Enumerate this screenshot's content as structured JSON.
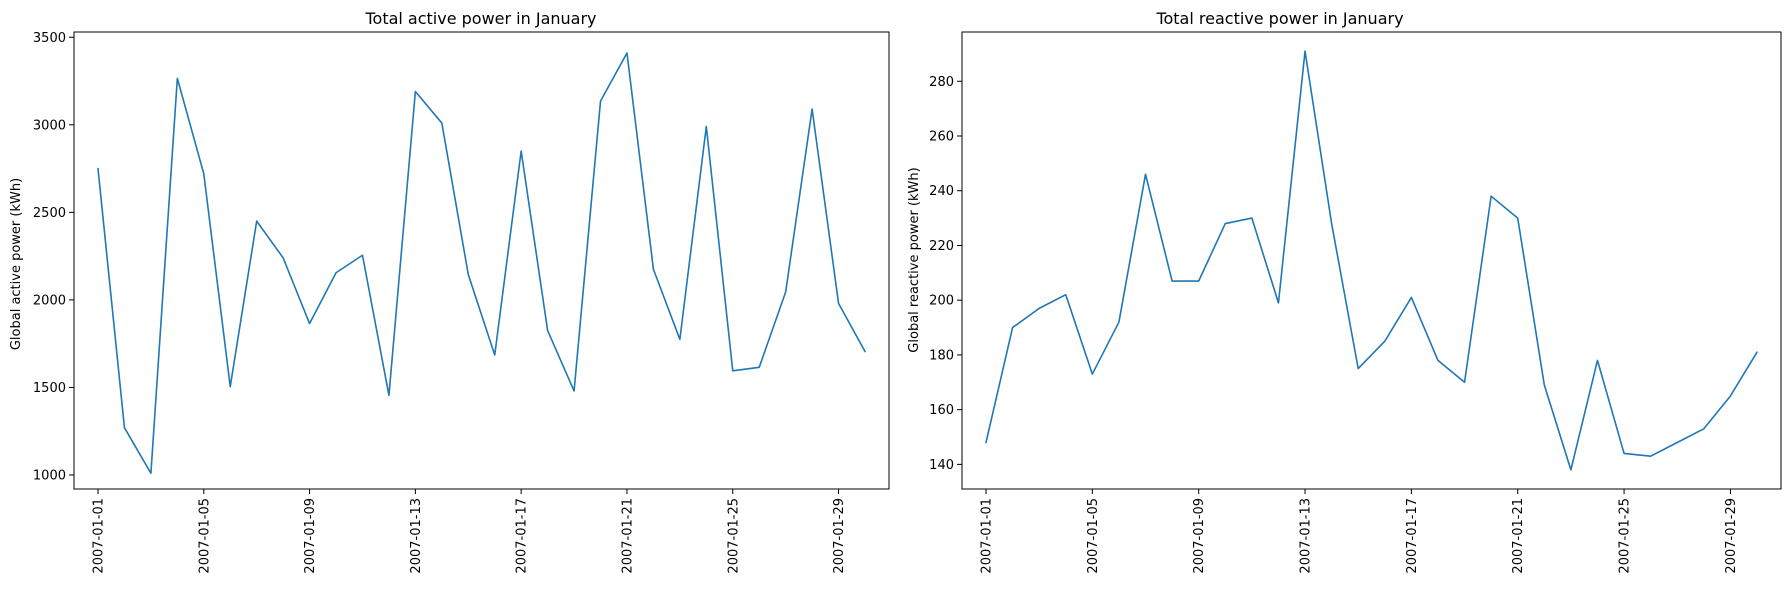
{
  "chart_data": [
    {
      "type": "line",
      "title": "Total active power in January",
      "xlabel": "",
      "ylabel": "Global active power (kWh)",
      "x": [
        "2007-01-01",
        "2007-01-02",
        "2007-01-03",
        "2007-01-04",
        "2007-01-05",
        "2007-01-06",
        "2007-01-07",
        "2007-01-08",
        "2007-01-09",
        "2007-01-10",
        "2007-01-11",
        "2007-01-12",
        "2007-01-13",
        "2007-01-14",
        "2007-01-15",
        "2007-01-16",
        "2007-01-17",
        "2007-01-18",
        "2007-01-19",
        "2007-01-20",
        "2007-01-21",
        "2007-01-22",
        "2007-01-23",
        "2007-01-24",
        "2007-01-25",
        "2007-01-26",
        "2007-01-27",
        "2007-01-28",
        "2007-01-29",
        "2007-01-30"
      ],
      "series": [
        {
          "values": [
            2750,
            1270,
            1010,
            3265,
            2720,
            1505,
            2450,
            2240,
            1865,
            2155,
            2255,
            1455,
            3190,
            3010,
            2145,
            1685,
            2850,
            1825,
            1480,
            3135,
            3410,
            2175,
            1775,
            2990,
            1595,
            1615,
            2045,
            3090,
            1980,
            1705
          ]
        }
      ],
      "xticks": [
        "2007-01-01",
        "2007-01-05",
        "2007-01-09",
        "2007-01-13",
        "2007-01-17",
        "2007-01-21",
        "2007-01-25",
        "2007-01-29"
      ],
      "yticks": [
        1000,
        1500,
        2000,
        2500,
        3000,
        3500
      ],
      "ylim": [
        920,
        3530
      ],
      "grid": false,
      "line_color": "#1f77b4"
    },
    {
      "type": "line",
      "title": "Total reactive power in January",
      "xlabel": "",
      "ylabel": "Global reactive power (kWh)",
      "x": [
        "2007-01-01",
        "2007-01-02",
        "2007-01-03",
        "2007-01-04",
        "2007-01-05",
        "2007-01-06",
        "2007-01-07",
        "2007-01-08",
        "2007-01-09",
        "2007-01-10",
        "2007-01-11",
        "2007-01-12",
        "2007-01-13",
        "2007-01-14",
        "2007-01-15",
        "2007-01-16",
        "2007-01-17",
        "2007-01-18",
        "2007-01-19",
        "2007-01-20",
        "2007-01-21",
        "2007-01-22",
        "2007-01-23",
        "2007-01-24",
        "2007-01-25",
        "2007-01-26",
        "2007-01-27",
        "2007-01-28",
        "2007-01-29",
        "2007-01-30"
      ],
      "series": [
        {
          "values": [
            148,
            190,
            197,
            202,
            173,
            192,
            246,
            207,
            207,
            228,
            230,
            199,
            291,
            228,
            175,
            185,
            201,
            178,
            170,
            238,
            230,
            169,
            138,
            178,
            144,
            143,
            148,
            153,
            165,
            181
          ]
        }
      ],
      "xticks": [
        "2007-01-01",
        "2007-01-05",
        "2007-01-09",
        "2007-01-13",
        "2007-01-17",
        "2007-01-21",
        "2007-01-25",
        "2007-01-29"
      ],
      "yticks": [
        140,
        160,
        180,
        200,
        220,
        240,
        260,
        280
      ],
      "ylim": [
        131,
        298
      ],
      "grid": false,
      "line_color": "#1f77b4"
    }
  ]
}
